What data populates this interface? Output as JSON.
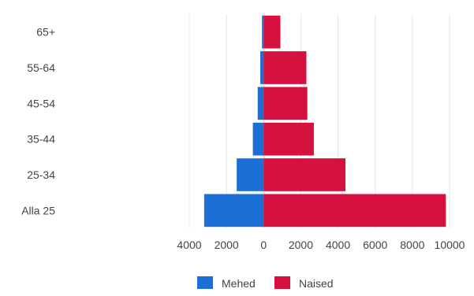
{
  "chart_data": {
    "type": "bar",
    "orientation": "horizontal",
    "stacking": "diverging",
    "categories": [
      "65+",
      "55-64",
      "45-54",
      "35-44",
      "25-34",
      "Alla 25"
    ],
    "series": [
      {
        "name": "Mehed",
        "color": "#1c6fd6",
        "values": [
          -90,
          -180,
          -320,
          -580,
          -1450,
          -3200
        ]
      },
      {
        "name": "Naised",
        "color": "#d6103f",
        "values": [
          900,
          2300,
          2350,
          2700,
          4400,
          9800
        ]
      }
    ],
    "xlim": [
      -4000,
      10000
    ],
    "xticks": [
      -4000,
      -2000,
      0,
      2000,
      4000,
      6000,
      8000,
      10000
    ],
    "xtick_labels": [
      "4000",
      "2000",
      "0",
      "2000",
      "4000",
      "6000",
      "8000",
      "10000"
    ],
    "grid": "vertical",
    "legend": "bottom-center"
  }
}
